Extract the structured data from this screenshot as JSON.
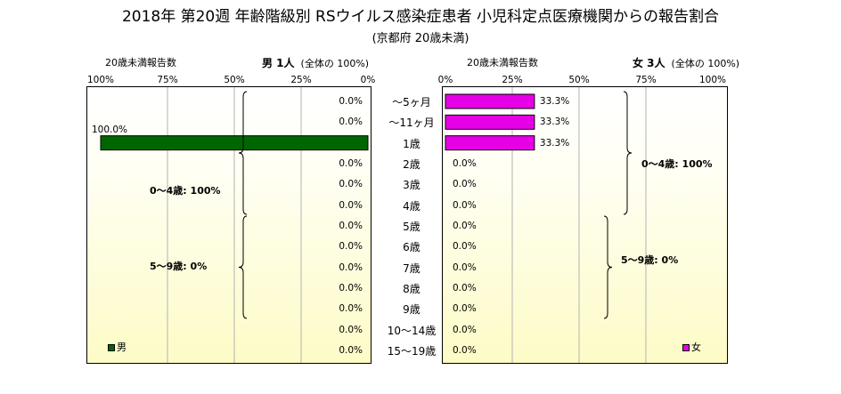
{
  "title": "2018年 第20週 年齢階級別 RSウイルス感染症患者 小児科定点医療機関からの報告割合",
  "subtitle": "(京都府 20歳未満)",
  "colors": {
    "male": "#006600",
    "female": "#e600e6",
    "grid": "#b3b3b3"
  },
  "left": {
    "header_left": "20歳未満報告数",
    "header_sex": "男 1人",
    "header_total": "(全体の 100%)",
    "ticks": [
      "100%",
      "75%",
      "50%",
      "25%",
      "0%"
    ],
    "legend": "男",
    "bracket_0_4": "0～4歳: 100%",
    "bracket_5_9": "5～9歳: 0%"
  },
  "right": {
    "header_left": "20歳未満報告数",
    "header_sex": "女 3人",
    "header_total": "(全体の 100%)",
    "ticks": [
      "0%",
      "25%",
      "50%",
      "75%",
      "100%"
    ],
    "legend": "女",
    "bracket_0_4": "0～4歳: 100%",
    "bracket_5_9": "5～9歳: 0%"
  },
  "chart_data": {
    "type": "bar",
    "title": "2018年 第20週 年齢階級別 RSウイルス感染症患者 小児科定点医療機関からの報告割合",
    "subtitle": "(京都府 20歳未満)",
    "orientation": "horizontal-butterfly",
    "categories": [
      "～5ヶ月",
      "～11ヶ月",
      "1歳",
      "2歳",
      "3歳",
      "4歳",
      "5歳",
      "6歳",
      "7歳",
      "8歳",
      "9歳",
      "10～14歳",
      "15～19歳"
    ],
    "series": [
      {
        "name": "男",
        "values": [
          0,
          0,
          100,
          0,
          0,
          0,
          0,
          0,
          0,
          0,
          0,
          0,
          0
        ],
        "labels": [
          "0.0%",
          "0.0%",
          "100.0%",
          "0.0%",
          "0.0%",
          "0.0%",
          "0.0%",
          "0.0%",
          "0.0%",
          "0.0%",
          "0.0%",
          "0.0%",
          "0.0%"
        ]
      },
      {
        "name": "女",
        "values": [
          33.3,
          33.3,
          33.3,
          0,
          0,
          0,
          0,
          0,
          0,
          0,
          0,
          0,
          0
        ],
        "labels": [
          "33.3%",
          "33.3%",
          "33.3%",
          "0.0%",
          "0.0%",
          "0.0%",
          "0.0%",
          "0.0%",
          "0.0%",
          "0.0%",
          "0.0%",
          "0.0%",
          "0.0%"
        ]
      }
    ],
    "xlim": [
      0,
      100
    ],
    "grid": true
  }
}
